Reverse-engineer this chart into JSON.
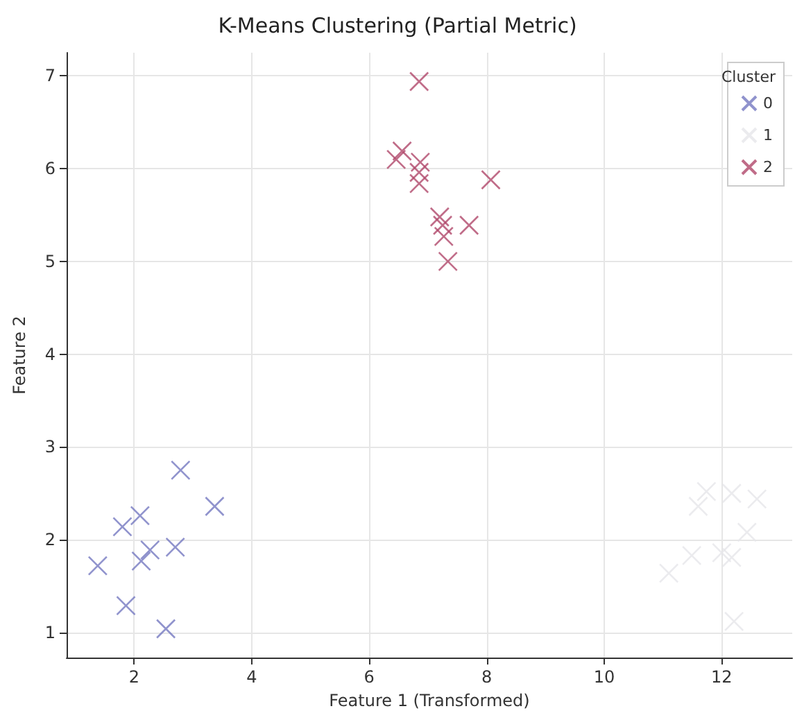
{
  "chart_data": {
    "type": "scatter",
    "title": "K-Means Clustering (Partial Metric)",
    "xlabel": "Feature 1 (Transformed)",
    "ylabel": "Feature 2",
    "legend_title": "Cluster",
    "legend": "top right",
    "grid": true,
    "marker": "cross",
    "xlim": [
      0.85,
      13.2
    ],
    "ylim": [
      0.73,
      7.25
    ],
    "xticks": [
      2,
      4,
      6,
      8,
      10,
      12
    ],
    "yticks": [
      1,
      2,
      3,
      4,
      5,
      6,
      7
    ],
    "series": [
      {
        "name": "0",
        "color": "#7478c0",
        "x": [
          1.38,
          1.8,
          2.1,
          2.79,
          3.37,
          2.7,
          2.12,
          2.27,
          1.86,
          2.54
        ],
        "values": [
          1.72,
          2.14,
          2.26,
          2.75,
          2.36,
          1.92,
          1.77,
          1.89,
          1.29,
          1.04
        ]
      },
      {
        "name": "1",
        "color": "#e6e6ea",
        "x": [
          11.74,
          11.6,
          12.17,
          12.6,
          12.43,
          11.49,
          12.0,
          12.17,
          11.1,
          12.21
        ],
        "values": [
          2.52,
          2.36,
          2.5,
          2.44,
          2.08,
          1.83,
          1.86,
          1.81,
          1.64,
          1.12
        ]
      },
      {
        "name": "2",
        "color": "#b0476a",
        "x": [
          6.46,
          6.56,
          6.87,
          6.85,
          6.85,
          8.07,
          7.2,
          7.25,
          7.27,
          7.34,
          7.7,
          6.85
        ],
        "values": [
          6.1,
          6.19,
          6.07,
          5.96,
          5.84,
          5.88,
          5.48,
          5.39,
          5.27,
          5.0,
          5.39,
          6.94
        ]
      }
    ]
  }
}
